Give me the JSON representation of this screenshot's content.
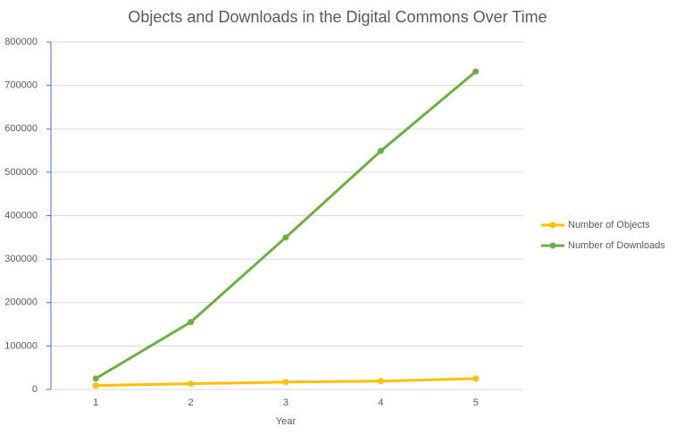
{
  "chart_data": {
    "type": "line",
    "title": "Objects and Downloads in the Digital Commons Over Time",
    "x_label": "Year",
    "categories": [
      "1",
      "2",
      "3",
      "4",
      "5"
    ],
    "series": [
      {
        "name": "Number of Objects",
        "color": "#ffc000",
        "values": [
          9000,
          13000,
          17000,
          19000,
          25000
        ]
      },
      {
        "name": "Number of Downloads",
        "color": "#70ad47",
        "values": [
          25000,
          155000,
          350000,
          549000,
          732000
        ]
      }
    ],
    "ylim": [
      0,
      800000
    ],
    "yticks": [
      0,
      100000,
      200000,
      300000,
      400000,
      500000,
      600000,
      700000,
      800000
    ],
    "grid": true,
    "legend": "right"
  }
}
